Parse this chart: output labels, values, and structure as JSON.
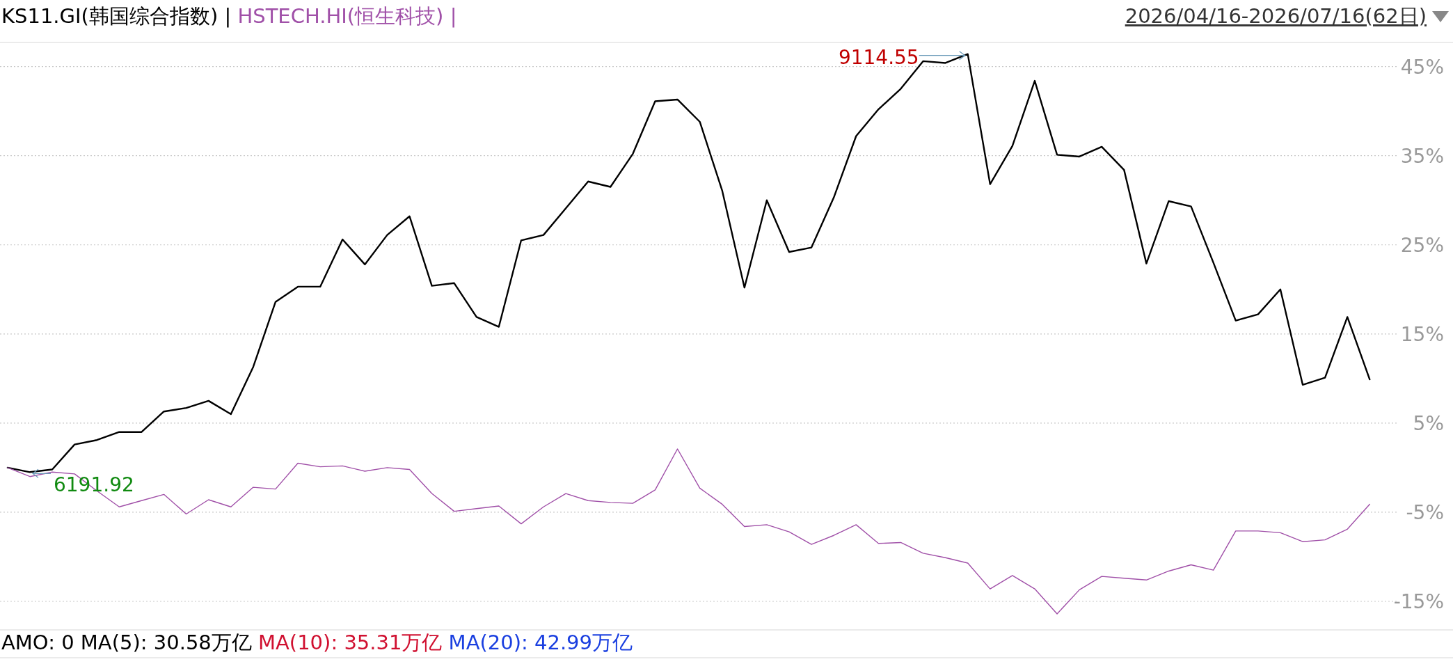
{
  "chart_data": {
    "type": "line",
    "subtitle": "2026/04/16-2026/07/16(62日)",
    "categories": [
      null,
      null,
      null,
      null,
      null,
      null,
      null,
      null,
      null,
      null,
      null,
      null,
      null,
      null,
      null,
      null,
      null,
      null,
      null,
      null,
      null,
      null,
      null,
      null,
      null,
      null,
      null,
      null,
      null,
      null,
      null,
      null,
      null,
      null,
      null,
      null,
      null,
      null,
      null,
      null,
      null,
      null,
      null,
      null,
      null,
      null,
      null,
      null,
      null,
      null,
      null,
      null,
      null,
      null,
      null,
      null,
      null,
      null,
      null,
      null,
      null,
      null
    ],
    "series": [
      {
        "name": "KS11.GI(韩国综合指数)",
        "color": "#000000",
        "values": [
          0,
          -0.5,
          -0.2,
          2.6,
          3.1,
          4.0,
          4.0,
          6.3,
          6.7,
          7.5,
          6.0,
          11.3,
          18.6,
          20.3,
          20.3,
          25.6,
          22.8,
          26.1,
          28.2,
          20.4,
          20.7,
          16.9,
          15.8,
          25.5,
          26.1,
          29.1,
          32.1,
          31.5,
          35.2,
          41.1,
          41.3,
          38.8,
          31.1,
          20.2,
          30.0,
          24.2,
          24.7,
          30.3,
          37.2,
          40.2,
          42.5,
          45.6,
          45.4,
          46.4,
          31.8,
          36.1,
          43.4,
          35.1,
          34.9,
          36.0,
          33.4,
          22.9,
          29.9,
          29.3,
          23.0,
          16.5,
          17.2,
          20.0,
          9.3,
          10.1,
          16.9,
          9.9
        ]
      },
      {
        "name": "HSTECH.HI(恒生科技)",
        "color": "#a050a8",
        "values": [
          0,
          -1.0,
          -0.5,
          -0.7,
          -2.6,
          -4.4,
          -3.7,
          -3.0,
          -5.2,
          -3.6,
          -4.4,
          -2.2,
          -2.4,
          0.5,
          0.1,
          0.2,
          -0.4,
          0,
          -0.2,
          -2.9,
          -4.9,
          -4.6,
          -4.3,
          -6.3,
          -4.4,
          -2.9,
          -3.7,
          -3.9,
          -4.0,
          -2.5,
          2.1,
          -2.3,
          -4.1,
          -6.6,
          -6.4,
          -7.2,
          -8.6,
          -7.6,
          -6.4,
          -8.5,
          -8.4,
          -9.6,
          -10.1,
          -10.7,
          -13.6,
          -12.1,
          -13.6,
          -16.4,
          -13.7,
          -12.2,
          -12.4,
          -12.6,
          -11.6,
          -10.9,
          -11.5,
          -7.1,
          -7.1,
          -7.3,
          -8.3,
          -8.1,
          -6.9,
          -4.1
        ]
      }
    ],
    "ylim": [
      -18.2,
      47.7
    ],
    "yticks": [
      {
        "value": 45,
        "label": "45%"
      },
      {
        "value": 35,
        "label": "35%"
      },
      {
        "value": 25,
        "label": "25%"
      },
      {
        "value": 15,
        "label": "15%"
      },
      {
        "value": 5,
        "label": "5%"
      },
      {
        "value": -5,
        "label": "-5%"
      },
      {
        "value": -15,
        "label": "-15%"
      }
    ],
    "tick_labels": "y",
    "grid": "y",
    "annotations": [
      "6191.92",
      "9114.55",
      "|",
      "|",
      "AMO: 0 MA(5): 30.58万亿",
      "MA(10): 35.31万亿",
      "MA(20): 42.99万亿"
    ]
  }
}
